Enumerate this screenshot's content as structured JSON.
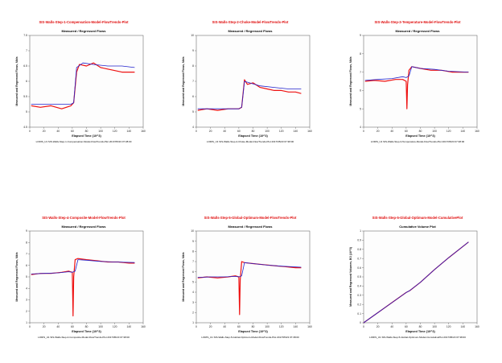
{
  "chart_data": [
    {
      "type": "line",
      "title": "SIS-Walls-Step-1-Compensation-Model-FlowTrends-Plot",
      "subtitle": "Measured / Regressed Flows",
      "xlabel": "Elapsed Time (10^3)",
      "ylabel": "Measured and Regressed Flows, Mbls",
      "footer": "LORIS_U1 SIS-Walls-Step-1-Compensation-Model-FlowTrends-Plot 2017/05/23 07:38:00",
      "xlim": [
        0,
        160
      ],
      "ylim": [
        4.5,
        7.5
      ],
      "x_ticks": [
        0,
        20,
        40,
        60,
        80,
        100,
        120,
        140,
        160
      ],
      "y_ticks": [
        4.5,
        5.0,
        5.5,
        6.0,
        6.5,
        7.0,
        7.5
      ],
      "grid": false,
      "series": [
        {
          "color": "#ee1111",
          "x": [
            2,
            15,
            30,
            45,
            58,
            62,
            66,
            70,
            80,
            90,
            100,
            110,
            120,
            130,
            140,
            148
          ],
          "y": [
            5.2,
            5.15,
            5.2,
            5.1,
            5.2,
            5.3,
            6.3,
            6.55,
            6.5,
            6.6,
            6.45,
            6.4,
            6.35,
            6.3,
            6.3,
            6.3
          ]
        },
        {
          "color": "#2222cc",
          "x": [
            2,
            30,
            58,
            62,
            66,
            75,
            90,
            110,
            130,
            148
          ],
          "y": [
            5.25,
            5.25,
            5.25,
            5.3,
            6.45,
            6.6,
            6.55,
            6.5,
            6.5,
            6.45
          ]
        }
      ]
    },
    {
      "type": "line",
      "title": "SIS-Walls-Step-2-Choke-Model-FlowTrends-Plot",
      "subtitle": "Measured / Regressed Flows",
      "xlabel": "Elapsed Time (10^3)",
      "ylabel": "Measured and Regressed Flows, Mbls",
      "footer": "LORIS_U1 SIS-Walls-Step-2-Choke-Model-FlowTrends-Plot 2017/05/23 07:38:00",
      "xlim": [
        0,
        160
      ],
      "ylim": [
        4,
        10
      ],
      "x_ticks": [
        0,
        20,
        40,
        60,
        80,
        100,
        120,
        140,
        160
      ],
      "y_ticks": [
        4,
        5,
        6,
        7,
        8,
        9,
        10
      ],
      "grid": false,
      "series": [
        {
          "color": "#ee1111",
          "x": [
            2,
            15,
            30,
            45,
            60,
            64,
            68,
            72,
            80,
            90,
            100,
            110,
            120,
            130,
            140,
            148
          ],
          "y": [
            5.1,
            5.2,
            5.1,
            5.2,
            5.2,
            5.3,
            7.1,
            6.8,
            6.9,
            6.6,
            6.5,
            6.4,
            6.4,
            6.3,
            6.3,
            6.2
          ]
        },
        {
          "color": "#2222cc",
          "x": [
            2,
            30,
            60,
            64,
            68,
            75,
            90,
            110,
            130,
            148
          ],
          "y": [
            5.2,
            5.2,
            5.2,
            5.3,
            7.0,
            6.9,
            6.7,
            6.6,
            6.5,
            6.5
          ]
        }
      ]
    },
    {
      "type": "line",
      "title": "SIS-Walls-Step-3-Temperature-Model-FlowTrends-Plot",
      "subtitle": "Measured / Regressed Flows",
      "xlabel": "Elapsed Time (10^3)",
      "ylabel": "Measured and Regressed Flows, Mbls",
      "footer": "LORIS_U1 SIS-Walls-Step-3-Temperature-Model-FlowTrends-Plot 2017/05/23 07:38:00",
      "xlim": [
        0,
        160
      ],
      "ylim": [
        4,
        9
      ],
      "x_ticks": [
        0,
        20,
        40,
        60,
        80,
        100,
        120,
        140,
        160
      ],
      "y_ticks": [
        4,
        5,
        6,
        7,
        8,
        9
      ],
      "grid": false,
      "series": [
        {
          "color": "#ee1111",
          "x": [
            2,
            15,
            30,
            45,
            55,
            60,
            61,
            62,
            64,
            68,
            80,
            95,
            110,
            125,
            140,
            148
          ],
          "y": [
            6.5,
            6.55,
            6.5,
            6.6,
            6.6,
            6.5,
            5.0,
            6.3,
            7.1,
            7.3,
            7.2,
            7.1,
            7.1,
            7.0,
            7.0,
            7.0
          ]
        },
        {
          "color": "#2222cc",
          "x": [
            2,
            20,
            40,
            55,
            60,
            64,
            68,
            80,
            100,
            120,
            148
          ],
          "y": [
            6.55,
            6.6,
            6.65,
            6.75,
            6.7,
            6.8,
            7.3,
            7.2,
            7.15,
            7.05,
            7.0
          ]
        }
      ]
    },
    {
      "type": "line",
      "title": "SIS-Walls-Step-4-Composite-Model-FlowTrends-Plot",
      "subtitle": "Measured / Regressed Flows",
      "xlabel": "Elapsed Time (10^3)",
      "ylabel": "Measured and Regressed Flows, Mbls",
      "footer": "LORIS_U1 SIS-Walls-Step-4-Composite-Model-FlowTrends-Plot 2017/05/23 07:38:00",
      "xlim": [
        0,
        160
      ],
      "ylim": [
        1,
        9
      ],
      "x_ticks": [
        0,
        20,
        40,
        60,
        80,
        100,
        120,
        140,
        160
      ],
      "y_ticks": [
        1,
        2,
        3,
        4,
        5,
        6,
        7,
        8,
        9
      ],
      "grid": false,
      "series": [
        {
          "color": "#ee1111",
          "x": [
            2,
            15,
            30,
            45,
            55,
            60,
            61,
            62,
            64,
            68,
            80,
            95,
            110,
            125,
            140,
            148
          ],
          "y": [
            5.2,
            5.3,
            5.3,
            5.4,
            5.5,
            5.4,
            1.6,
            5.0,
            6.5,
            6.6,
            6.5,
            6.4,
            6.3,
            6.3,
            6.2,
            6.2
          ]
        },
        {
          "color": "#2222cc",
          "x": [
            2,
            20,
            40,
            55,
            60,
            64,
            68,
            80,
            100,
            120,
            148
          ],
          "y": [
            5.25,
            5.3,
            5.35,
            5.45,
            5.4,
            5.5,
            6.5,
            6.45,
            6.35,
            6.3,
            6.25
          ]
        }
      ]
    },
    {
      "type": "line",
      "title": "SIS-Walls-Step-5-Global-Optimum-Model-FlowTrends-Plot",
      "subtitle": "Measured / Regressed Flows",
      "xlabel": "Elapsed Time (10^3)",
      "ylabel": "Measured and Regressed Flows, Mbls",
      "footer": "LORIS_U1 SIS-Walls-Step-5-Global-Optimum-Model-FlowTrends-Plot 2017/05/23 07:38:00",
      "xlim": [
        0,
        160
      ],
      "ylim": [
        1,
        10
      ],
      "x_ticks": [
        0,
        20,
        40,
        60,
        80,
        100,
        120,
        140,
        160
      ],
      "y_ticks": [
        1,
        2,
        3,
        4,
        5,
        6,
        7,
        8,
        9,
        10
      ],
      "grid": false,
      "series": [
        {
          "color": "#ee1111",
          "x": [
            2,
            15,
            30,
            45,
            55,
            60,
            61,
            62,
            64,
            68,
            80,
            95,
            110,
            125,
            140,
            148
          ],
          "y": [
            5.4,
            5.5,
            5.4,
            5.5,
            5.6,
            5.5,
            1.8,
            5.2,
            7.0,
            6.9,
            6.8,
            6.7,
            6.6,
            6.5,
            6.4,
            6.4
          ]
        },
        {
          "color": "#2222cc",
          "x": [
            2,
            20,
            40,
            55,
            60,
            64,
            68,
            80,
            100,
            120,
            148
          ],
          "y": [
            5.45,
            5.5,
            5.5,
            5.55,
            5.5,
            5.6,
            6.9,
            6.8,
            6.65,
            6.55,
            6.45
          ]
        }
      ]
    },
    {
      "type": "line",
      "title": "SIS-Walls-Step-5-Global-Optimum-Model-CumulativePlot",
      "subtitle": "Cumulative Volume Plot",
      "xlabel": "Elapsed Time (10^3)",
      "ylabel": "Measured and Regressed Volumes, BO (10^3)",
      "footer": "LORIS_U1 SIS-Walls-Step-5-Global-Optimum-Model-CumulativePlot 2017/05/23 07:38:00",
      "xlim": [
        0,
        160
      ],
      "ylim": [
        0,
        1
      ],
      "x_ticks": [
        0,
        20,
        40,
        60,
        80,
        100,
        120,
        140,
        160
      ],
      "y_ticks": [
        0,
        0.1,
        0.2,
        0.3,
        0.4,
        0.5,
        0.6,
        0.7,
        0.8,
        0.9,
        1.0
      ],
      "grid": false,
      "series": [
        {
          "color": "#ee1111",
          "x": [
            0,
            20,
            40,
            60,
            65,
            80,
            100,
            120,
            148
          ],
          "y": [
            0.0,
            0.11,
            0.22,
            0.33,
            0.35,
            0.44,
            0.58,
            0.71,
            0.88
          ]
        },
        {
          "color": "#2222cc",
          "x": [
            0,
            20,
            40,
            60,
            65,
            80,
            100,
            120,
            148
          ],
          "y": [
            0.0,
            0.11,
            0.22,
            0.33,
            0.35,
            0.44,
            0.58,
            0.71,
            0.88
          ]
        }
      ]
    }
  ]
}
